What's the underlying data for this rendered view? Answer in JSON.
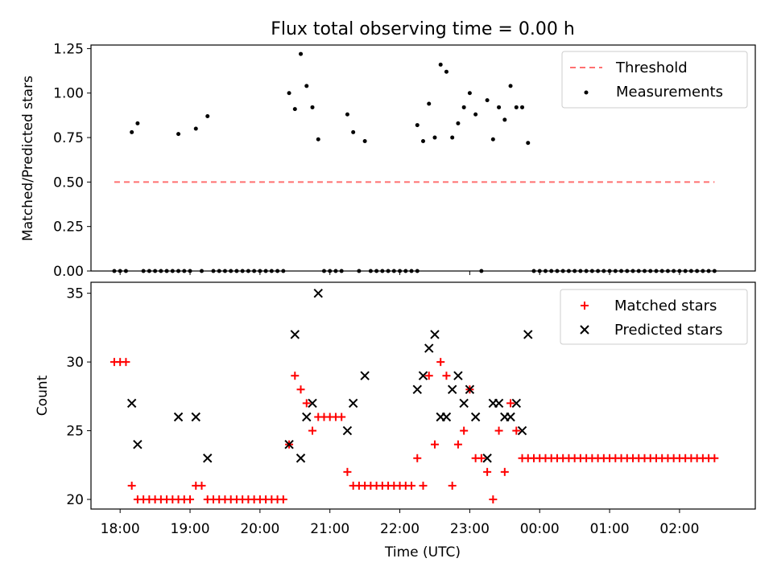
{
  "figure": {
    "title": "Flux total observing time = 0.00 h"
  },
  "chart_data": [
    {
      "type": "scatter",
      "panel": "top",
      "ylabel": "Matched/Predicted stars",
      "ylim": [
        0,
        1.27
      ],
      "yticks": [
        0,
        0.25,
        0.5,
        0.75,
        1.0,
        1.25
      ],
      "ytick_labels": [
        "0.00",
        "0.25",
        "0.50",
        "0.75",
        "1.00",
        "1.25"
      ],
      "xlim": [
        "17:35",
        "03:05"
      ],
      "legend_position": "top-right",
      "threshold": {
        "name": "Threshold",
        "y": 0.5,
        "x_start": "17:55",
        "x_end": "02:30",
        "color": "#ff7070",
        "style": "dashed"
      },
      "series": [
        {
          "name": "Measurements",
          "color": "#000000",
          "marker": "dot",
          "points": [
            [
              "17:55",
              0
            ],
            [
              "18:00",
              0
            ],
            [
              "18:05",
              0
            ],
            [
              "18:10",
              0.78
            ],
            [
              "18:15",
              0.83
            ],
            [
              "18:20",
              0
            ],
            [
              "18:25",
              0
            ],
            [
              "18:30",
              0
            ],
            [
              "18:35",
              0
            ],
            [
              "18:40",
              0
            ],
            [
              "18:45",
              0
            ],
            [
              "18:50",
              0
            ],
            [
              "18:50",
              0.77
            ],
            [
              "18:55",
              0
            ],
            [
              "19:00",
              0
            ],
            [
              "19:05",
              0.8
            ],
            [
              "19:10",
              0
            ],
            [
              "19:15",
              0.87
            ],
            [
              "19:20",
              0
            ],
            [
              "19:25",
              0
            ],
            [
              "19:30",
              0
            ],
            [
              "19:35",
              0
            ],
            [
              "19:40",
              0
            ],
            [
              "19:45",
              0
            ],
            [
              "19:50",
              0
            ],
            [
              "19:55",
              0
            ],
            [
              "20:00",
              0
            ],
            [
              "20:05",
              0
            ],
            [
              "20:10",
              0
            ],
            [
              "20:15",
              0
            ],
            [
              "20:20",
              0
            ],
            [
              "20:25",
              1.0
            ],
            [
              "20:30",
              0.91
            ],
            [
              "20:35",
              1.22
            ],
            [
              "20:40",
              1.04
            ],
            [
              "20:45",
              0.92
            ],
            [
              "20:50",
              0.74
            ],
            [
              "20:55",
              0
            ],
            [
              "21:00",
              0
            ],
            [
              "21:05",
              0
            ],
            [
              "21:10",
              0
            ],
            [
              "21:15",
              0.88
            ],
            [
              "21:20",
              0.78
            ],
            [
              "21:25",
              0
            ],
            [
              "21:30",
              0.73
            ],
            [
              "21:35",
              0
            ],
            [
              "21:40",
              0
            ],
            [
              "21:45",
              0
            ],
            [
              "21:50",
              0
            ],
            [
              "21:55",
              0
            ],
            [
              "22:00",
              0
            ],
            [
              "22:05",
              0
            ],
            [
              "22:10",
              0
            ],
            [
              "22:15",
              0
            ],
            [
              "22:15",
              0.82
            ],
            [
              "22:20",
              0.73
            ],
            [
              "22:25",
              0.94
            ],
            [
              "22:30",
              0.75
            ],
            [
              "22:35",
              1.16
            ],
            [
              "22:40",
              1.12
            ],
            [
              "22:45",
              0.75
            ],
            [
              "22:50",
              0.83
            ],
            [
              "22:55",
              0.92
            ],
            [
              "23:00",
              1.0
            ],
            [
              "23:05",
              0.88
            ],
            [
              "23:10",
              0
            ],
            [
              "23:15",
              0.96
            ],
            [
              "23:20",
              0.74
            ],
            [
              "23:25",
              0.92
            ],
            [
              "23:30",
              0.85
            ],
            [
              "23:35",
              1.04
            ],
            [
              "23:40",
              0.92
            ],
            [
              "23:45",
              0.92
            ],
            [
              "23:50",
              0.72
            ],
            [
              "23:55",
              0
            ],
            [
              "00:00",
              0
            ],
            [
              "00:05",
              0
            ],
            [
              "00:10",
              0
            ],
            [
              "00:15",
              0
            ],
            [
              "00:20",
              0
            ],
            [
              "00:25",
              0
            ],
            [
              "00:30",
              0
            ],
            [
              "00:35",
              0
            ],
            [
              "00:40",
              0
            ],
            [
              "00:45",
              0
            ],
            [
              "00:50",
              0
            ],
            [
              "00:55",
              0
            ],
            [
              "01:00",
              0
            ],
            [
              "01:05",
              0
            ],
            [
              "01:10",
              0
            ],
            [
              "01:15",
              0
            ],
            [
              "01:20",
              0
            ],
            [
              "01:25",
              0
            ],
            [
              "01:30",
              0
            ],
            [
              "01:35",
              0
            ],
            [
              "01:40",
              0
            ],
            [
              "01:45",
              0
            ],
            [
              "01:50",
              0
            ],
            [
              "01:55",
              0
            ],
            [
              "02:00",
              0
            ],
            [
              "02:05",
              0
            ],
            [
              "02:10",
              0
            ],
            [
              "02:15",
              0
            ],
            [
              "02:20",
              0
            ],
            [
              "02:25",
              0
            ],
            [
              "02:30",
              0
            ]
          ]
        }
      ]
    },
    {
      "type": "scatter",
      "panel": "bottom",
      "xlabel": "Time (UTC)",
      "ylabel": "Count",
      "ylim": [
        19.3,
        35.8
      ],
      "yticks": [
        20,
        25,
        30,
        35
      ],
      "ytick_labels": [
        "20",
        "25",
        "30",
        "35"
      ],
      "xlim": [
        "17:35",
        "03:05"
      ],
      "xticks": [
        "18:00",
        "19:00",
        "20:00",
        "21:00",
        "22:00",
        "23:00",
        "00:00",
        "01:00",
        "02:00"
      ],
      "legend_position": "top-right",
      "series": [
        {
          "name": "Matched stars",
          "color": "#ff0000",
          "marker": "plus",
          "points": [
            [
              "17:55",
              30
            ],
            [
              "18:00",
              30
            ],
            [
              "18:05",
              30
            ],
            [
              "18:10",
              21
            ],
            [
              "18:15",
              20
            ],
            [
              "18:20",
              20
            ],
            [
              "18:25",
              20
            ],
            [
              "18:30",
              20
            ],
            [
              "18:35",
              20
            ],
            [
              "18:40",
              20
            ],
            [
              "18:45",
              20
            ],
            [
              "18:50",
              20
            ],
            [
              "18:55",
              20
            ],
            [
              "19:00",
              20
            ],
            [
              "19:05",
              21
            ],
            [
              "19:10",
              21
            ],
            [
              "19:15",
              20
            ],
            [
              "19:20",
              20
            ],
            [
              "19:25",
              20
            ],
            [
              "19:30",
              20
            ],
            [
              "19:35",
              20
            ],
            [
              "19:40",
              20
            ],
            [
              "19:45",
              20
            ],
            [
              "19:50",
              20
            ],
            [
              "19:55",
              20
            ],
            [
              "20:00",
              20
            ],
            [
              "20:05",
              20
            ],
            [
              "20:10",
              20
            ],
            [
              "20:15",
              20
            ],
            [
              "20:20",
              20
            ],
            [
              "20:25",
              24
            ],
            [
              "20:30",
              29
            ],
            [
              "20:35",
              28
            ],
            [
              "20:40",
              27
            ],
            [
              "20:45",
              25
            ],
            [
              "20:50",
              26
            ],
            [
              "20:55",
              26
            ],
            [
              "21:00",
              26
            ],
            [
              "21:05",
              26
            ],
            [
              "21:10",
              26
            ],
            [
              "21:15",
              22
            ],
            [
              "21:20",
              21
            ],
            [
              "21:25",
              21
            ],
            [
              "21:30",
              21
            ],
            [
              "21:35",
              21
            ],
            [
              "21:40",
              21
            ],
            [
              "21:45",
              21
            ],
            [
              "21:50",
              21
            ],
            [
              "21:55",
              21
            ],
            [
              "22:00",
              21
            ],
            [
              "22:05",
              21
            ],
            [
              "22:10",
              21
            ],
            [
              "22:15",
              23
            ],
            [
              "22:20",
              21
            ],
            [
              "22:25",
              29
            ],
            [
              "22:30",
              24
            ],
            [
              "22:35",
              30
            ],
            [
              "22:40",
              29
            ],
            [
              "22:45",
              21
            ],
            [
              "22:50",
              24
            ],
            [
              "22:55",
              25
            ],
            [
              "23:00",
              28
            ],
            [
              "23:05",
              23
            ],
            [
              "23:10",
              23
            ],
            [
              "23:15",
              22
            ],
            [
              "23:20",
              20
            ],
            [
              "23:25",
              25
            ],
            [
              "23:30",
              22
            ],
            [
              "23:35",
              27
            ],
            [
              "23:40",
              25
            ],
            [
              "23:45",
              23
            ],
            [
              "23:50",
              23
            ],
            [
              "23:55",
              23
            ],
            [
              "00:00",
              23
            ],
            [
              "00:05",
              23
            ],
            [
              "00:10",
              23
            ],
            [
              "00:15",
              23
            ],
            [
              "00:20",
              23
            ],
            [
              "00:25",
              23
            ],
            [
              "00:30",
              23
            ],
            [
              "00:35",
              23
            ],
            [
              "00:40",
              23
            ],
            [
              "00:45",
              23
            ],
            [
              "00:50",
              23
            ],
            [
              "00:55",
              23
            ],
            [
              "01:00",
              23
            ],
            [
              "01:05",
              23
            ],
            [
              "01:10",
              23
            ],
            [
              "01:15",
              23
            ],
            [
              "01:20",
              23
            ],
            [
              "01:25",
              23
            ],
            [
              "01:30",
              23
            ],
            [
              "01:35",
              23
            ],
            [
              "01:40",
              23
            ],
            [
              "01:45",
              23
            ],
            [
              "01:50",
              23
            ],
            [
              "01:55",
              23
            ],
            [
              "02:00",
              23
            ],
            [
              "02:05",
              23
            ],
            [
              "02:10",
              23
            ],
            [
              "02:15",
              23
            ],
            [
              "02:20",
              23
            ],
            [
              "02:25",
              23
            ],
            [
              "02:30",
              23
            ]
          ]
        },
        {
          "name": "Predicted stars",
          "color": "#000000",
          "marker": "x",
          "points": [
            [
              "18:10",
              27
            ],
            [
              "18:15",
              24
            ],
            [
              "18:50",
              26
            ],
            [
              "19:05",
              26
            ],
            [
              "19:15",
              23
            ],
            [
              "20:25",
              24
            ],
            [
              "20:30",
              32
            ],
            [
              "20:35",
              23
            ],
            [
              "20:40",
              26
            ],
            [
              "20:45",
              27
            ],
            [
              "20:50",
              35
            ],
            [
              "21:15",
              25
            ],
            [
              "21:20",
              27
            ],
            [
              "21:30",
              29
            ],
            [
              "22:15",
              28
            ],
            [
              "22:20",
              29
            ],
            [
              "22:25",
              31
            ],
            [
              "22:30",
              32
            ],
            [
              "22:35",
              26
            ],
            [
              "22:40",
              26
            ],
            [
              "22:45",
              28
            ],
            [
              "22:50",
              29
            ],
            [
              "22:55",
              27
            ],
            [
              "23:00",
              28
            ],
            [
              "23:05",
              26
            ],
            [
              "23:15",
              23
            ],
            [
              "23:20",
              27
            ],
            [
              "23:25",
              27
            ],
            [
              "23:30",
              26
            ],
            [
              "23:35",
              26
            ],
            [
              "23:40",
              27
            ],
            [
              "23:45",
              25
            ],
            [
              "23:50",
              32
            ]
          ]
        }
      ]
    }
  ]
}
